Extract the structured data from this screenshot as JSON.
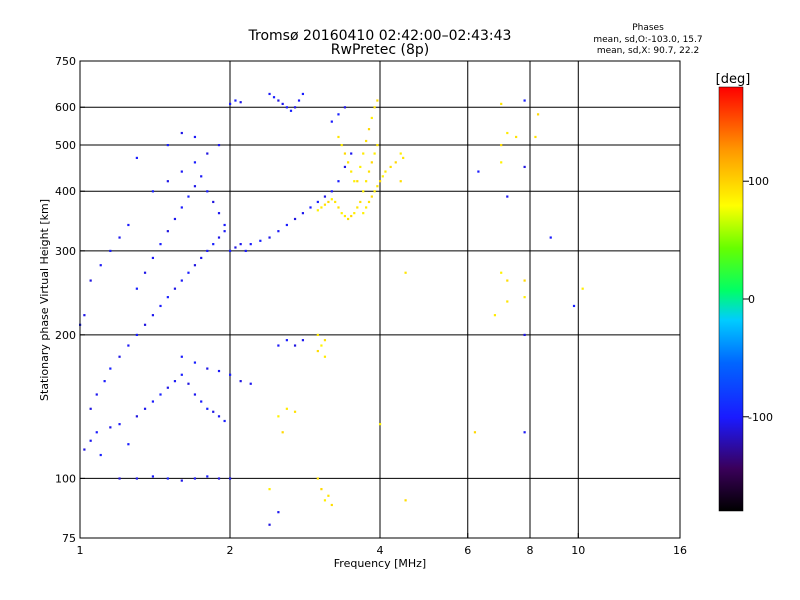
{
  "header": {
    "title_line1": "Tromsø 20160410 02:42:00–02:43:43",
    "title_line2": "RwPretec (8p)"
  },
  "stats": {
    "label": "Phases",
    "o_mode": "mean, sd,O:-103.0, 15.7",
    "x_mode": "mean, sd,X:  90.7, 22.2"
  },
  "colorbar": {
    "unit": "[deg]",
    "ticks": [
      {
        "value": 100,
        "label": "100"
      },
      {
        "value": 0,
        "label": "0"
      },
      {
        "value": -100,
        "label": "-100"
      }
    ],
    "range": [
      -180,
      180
    ]
  },
  "chart_data": {
    "type": "scatter",
    "xlabel": "Frequency [MHz]",
    "ylabel": "Stationary phase Virtual Height [km]",
    "x_scale": "log",
    "y_scale": "log",
    "xlim": [
      1,
      16
    ],
    "ylim": [
      75,
      750
    ],
    "x_ticks": [
      {
        "value": 1,
        "label": "1"
      },
      {
        "value": 2,
        "label": "2"
      },
      {
        "value": 4,
        "label": "4"
      },
      {
        "value": 6,
        "label": "6"
      },
      {
        "value": 8,
        "label": "8"
      },
      {
        "value": 10,
        "label": "10"
      },
      {
        "value": 16,
        "label": "16"
      }
    ],
    "x_grid": [
      2,
      4,
      6,
      8,
      10
    ],
    "y_ticks": [
      {
        "value": 75,
        "label": "75"
      },
      {
        "value": 100,
        "label": "100"
      },
      {
        "value": 200,
        "label": "200"
      },
      {
        "value": 300,
        "label": "300"
      },
      {
        "value": 400,
        "label": "400"
      },
      {
        "value": 500,
        "label": "500"
      },
      {
        "value": 600,
        "label": "600"
      },
      {
        "value": 750,
        "label": "750"
      }
    ],
    "y_grid": [
      100,
      200,
      300,
      400,
      500,
      600
    ],
    "grid": true,
    "color_scale": "phase in degrees, -180 (black) to +180 (red)",
    "series": [
      {
        "trace": "O-mode",
        "points": [
          [
            1.02,
            115
          ],
          [
            1.05,
            120
          ],
          [
            1.08,
            125
          ],
          [
            1.1,
            112
          ],
          [
            1.15,
            128
          ],
          [
            1.2,
            130
          ],
          [
            1.25,
            118
          ],
          [
            1.3,
            135
          ],
          [
            1.35,
            140
          ],
          [
            1.4,
            145
          ],
          [
            1.45,
            150
          ],
          [
            1.5,
            155
          ],
          [
            1.55,
            160
          ],
          [
            1.6,
            165
          ],
          [
            1.65,
            158
          ],
          [
            1.7,
            150
          ],
          [
            1.75,
            145
          ],
          [
            1.8,
            140
          ],
          [
            1.85,
            138
          ],
          [
            1.9,
            135
          ],
          [
            1.95,
            132
          ],
          [
            1.05,
            140
          ],
          [
            1.08,
            150
          ],
          [
            1.12,
            160
          ],
          [
            1.15,
            170
          ],
          [
            1.2,
            180
          ],
          [
            1.25,
            190
          ],
          [
            1.3,
            200
          ],
          [
            1.35,
            210
          ],
          [
            1.4,
            220
          ],
          [
            1.45,
            230
          ],
          [
            1.5,
            240
          ],
          [
            1.55,
            250
          ],
          [
            1.6,
            260
          ],
          [
            1.65,
            270
          ],
          [
            1.7,
            280
          ],
          [
            1.75,
            290
          ],
          [
            1.8,
            300
          ],
          [
            1.85,
            310
          ],
          [
            1.9,
            320
          ],
          [
            1.95,
            330
          ],
          [
            2.0,
            300
          ],
          [
            2.05,
            305
          ],
          [
            2.1,
            310
          ],
          [
            2.15,
            300
          ],
          [
            1.3,
            250
          ],
          [
            1.35,
            270
          ],
          [
            1.4,
            290
          ],
          [
            1.45,
            310
          ],
          [
            1.5,
            330
          ],
          [
            1.55,
            350
          ],
          [
            1.6,
            370
          ],
          [
            1.65,
            390
          ],
          [
            1.7,
            410
          ],
          [
            1.75,
            430
          ],
          [
            1.8,
            400
          ],
          [
            1.85,
            380
          ],
          [
            1.9,
            360
          ],
          [
            1.95,
            340
          ],
          [
            1.4,
            400
          ],
          [
            1.5,
            420
          ],
          [
            1.6,
            440
          ],
          [
            1.7,
            460
          ],
          [
            1.8,
            480
          ],
          [
            1.9,
            500
          ],
          [
            2.0,
            610
          ],
          [
            2.05,
            620
          ],
          [
            2.1,
            615
          ],
          [
            2.4,
            640
          ],
          [
            2.45,
            630
          ],
          [
            2.5,
            620
          ],
          [
            2.55,
            610
          ],
          [
            2.6,
            600
          ],
          [
            2.65,
            590
          ],
          [
            2.7,
            600
          ],
          [
            2.75,
            620
          ],
          [
            2.8,
            640
          ],
          [
            1.2,
            100
          ],
          [
            1.3,
            100
          ],
          [
            1.4,
            101
          ],
          [
            1.5,
            100
          ],
          [
            1.6,
            99
          ],
          [
            1.7,
            100
          ],
          [
            1.8,
            101
          ],
          [
            1.9,
            100
          ],
          [
            2.0,
            100
          ],
          [
            2.2,
            310
          ],
          [
            2.3,
            315
          ],
          [
            2.4,
            320
          ],
          [
            2.5,
            330
          ],
          [
            2.6,
            340
          ],
          [
            2.7,
            350
          ],
          [
            2.8,
            360
          ],
          [
            2.9,
            370
          ],
          [
            3.0,
            380
          ],
          [
            3.1,
            390
          ],
          [
            3.2,
            400
          ],
          [
            3.3,
            420
          ],
          [
            3.4,
            450
          ],
          [
            3.5,
            480
          ],
          [
            3.2,
            560
          ],
          [
            3.3,
            580
          ],
          [
            3.4,
            600
          ],
          [
            1.1,
            280
          ],
          [
            1.15,
            300
          ],
          [
            1.05,
            260
          ],
          [
            1.2,
            320
          ],
          [
            1.25,
            340
          ],
          [
            1.0,
            210
          ],
          [
            1.02,
            220
          ],
          [
            2.5,
            190
          ],
          [
            2.6,
            195
          ],
          [
            2.7,
            190
          ],
          [
            2.8,
            195
          ],
          [
            1.6,
            180
          ],
          [
            1.7,
            175
          ],
          [
            1.8,
            170
          ],
          [
            1.9,
            168
          ],
          [
            2.0,
            165
          ],
          [
            2.1,
            160
          ],
          [
            2.2,
            158
          ],
          [
            8.8,
            320
          ],
          [
            9.8,
            230
          ],
          [
            7.8,
            200
          ],
          [
            7.8,
            125
          ],
          [
            7.8,
            620
          ],
          [
            7.8,
            450
          ],
          [
            7.2,
            390
          ],
          [
            6.3,
            440
          ],
          [
            1.5,
            500
          ],
          [
            1.6,
            530
          ],
          [
            1.7,
            520
          ],
          [
            1.3,
            470
          ],
          [
            2.4,
            80
          ],
          [
            2.5,
            85
          ]
        ],
        "phase": -103
      },
      {
        "trace": "X-mode",
        "points": [
          [
            3.0,
            365
          ],
          [
            3.05,
            370
          ],
          [
            3.1,
            375
          ],
          [
            3.15,
            380
          ],
          [
            3.2,
            385
          ],
          [
            3.25,
            380
          ],
          [
            3.3,
            370
          ],
          [
            3.35,
            360
          ],
          [
            3.4,
            355
          ],
          [
            3.45,
            350
          ],
          [
            3.5,
            355
          ],
          [
            3.55,
            360
          ],
          [
            3.6,
            370
          ],
          [
            3.65,
            380
          ],
          [
            3.7,
            400
          ],
          [
            3.75,
            420
          ],
          [
            3.8,
            440
          ],
          [
            3.85,
            460
          ],
          [
            3.9,
            480
          ],
          [
            3.95,
            500
          ],
          [
            3.6,
            420
          ],
          [
            3.65,
            450
          ],
          [
            3.7,
            480
          ],
          [
            3.75,
            510
          ],
          [
            3.8,
            540
          ],
          [
            3.85,
            570
          ],
          [
            3.9,
            600
          ],
          [
            3.95,
            620
          ],
          [
            3.7,
            360
          ],
          [
            3.75,
            370
          ],
          [
            3.8,
            380
          ],
          [
            3.85,
            390
          ],
          [
            3.9,
            400
          ],
          [
            3.95,
            410
          ],
          [
            4.0,
            420
          ],
          [
            4.05,
            430
          ],
          [
            4.1,
            440
          ],
          [
            4.2,
            450
          ],
          [
            4.3,
            460
          ],
          [
            4.4,
            480
          ],
          [
            4.45,
            470
          ],
          [
            4.4,
            420
          ],
          [
            3.55,
            420
          ],
          [
            3.5,
            440
          ],
          [
            3.45,
            460
          ],
          [
            3.4,
            480
          ],
          [
            3.35,
            500
          ],
          [
            3.3,
            520
          ],
          [
            3.0,
            185
          ],
          [
            3.05,
            190
          ],
          [
            3.1,
            180
          ],
          [
            3.0,
            100
          ],
          [
            3.05,
            95
          ],
          [
            3.1,
            90
          ],
          [
            3.15,
            92
          ],
          [
            3.2,
            88
          ],
          [
            2.5,
            135
          ],
          [
            2.6,
            140
          ],
          [
            2.7,
            138
          ],
          [
            2.55,
            125
          ],
          [
            2.4,
            95
          ],
          [
            7.0,
            610
          ],
          [
            7.0,
            500
          ],
          [
            7.0,
            460
          ],
          [
            7.2,
            530
          ],
          [
            7.5,
            520
          ],
          [
            7.8,
            260
          ],
          [
            7.8,
            240
          ],
          [
            7.2,
            235
          ],
          [
            7.2,
            260
          ],
          [
            7.0,
            270
          ],
          [
            6.8,
            220
          ],
          [
            8.2,
            520
          ],
          [
            8.3,
            580
          ],
          [
            10.2,
            250
          ],
          [
            4.5,
            270
          ],
          [
            4.5,
            90
          ],
          [
            4.0,
            130
          ],
          [
            3.0,
            200
          ],
          [
            3.1,
            195
          ],
          [
            6.2,
            125
          ]
        ],
        "phase": 91
      }
    ]
  }
}
